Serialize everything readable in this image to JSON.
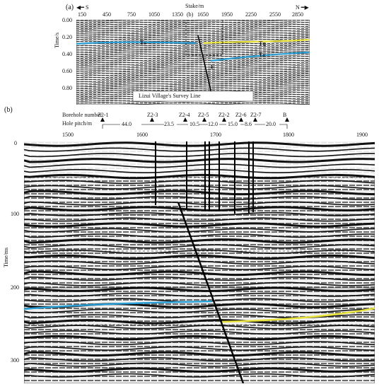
{
  "panel_a": {
    "tag": "(a)",
    "stake_title": "Stake/m",
    "stakes": [
      "150",
      "450",
      "750",
      "1050",
      "1350",
      "1650",
      "1950",
      "2250",
      "2550",
      "2850"
    ],
    "dir_left": "S",
    "dir_right": "N",
    "ylabel": "Time/s",
    "yticks": [
      "0.00",
      "0.20",
      "0.40",
      "0.60",
      "0.80"
    ],
    "inset_tag": "(b)",
    "survey_line": "Lizui Village's Survey Line",
    "horizon_tn": "Tₙ",
    "horizon_tq": "Tq",
    "horizon_tn2": "Tₙ",
    "fault_mark": "F"
  },
  "panel_b": {
    "tag": "(b)",
    "borehole_label": "Borehole number",
    "pitch_label": "Hole pitch/m",
    "boreholes": [
      "Z2-1",
      "Z2-3",
      "Z2-4",
      "Z2-5",
      "Z2-2",
      "Z2-6",
      "Z2-7",
      "B"
    ],
    "pitches": [
      "44.0",
      "23.5",
      "10.5",
      "12.0",
      "15.0",
      "8.6",
      "20.0"
    ],
    "xticks": [
      "1500",
      "1600",
      "1700",
      "1800",
      "1900"
    ],
    "ylabel": "Time/ms",
    "yticks": [
      "0",
      "100",
      "200",
      "300"
    ]
  },
  "colors": {
    "blue_horizon": "#2a9fd6",
    "yellow_horizon": "#e8e23a",
    "fault": "#000000"
  }
}
